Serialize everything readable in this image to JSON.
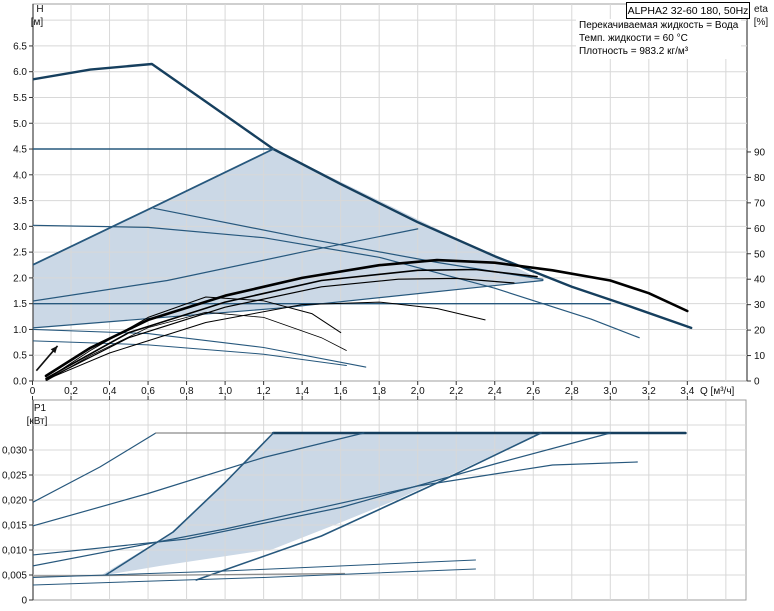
{
  "header": {
    "title": "ALPHA2 32-60 180, 50Hz",
    "info_lines": [
      "Перекачиваемая жидкость = Вода",
      "Темп. жидкости = 60 °C",
      "Плотность = 983.2 кг/м³"
    ]
  },
  "colors": {
    "curve_blue": "#27587d",
    "curve_dark": "#163f5e",
    "curve_black": "#000000",
    "curve_gray": "#8a8a8a",
    "region_fill": "#cbd8e6",
    "grid": "#d8d8d8",
    "frame": "#9f9f9f",
    "axis": "#444444"
  },
  "chart_data": [
    {
      "type": "line",
      "name": "head-curves",
      "xlabel": "Q [м³/ч]",
      "ylabel": [
        "H",
        "[м]"
      ],
      "y2label": [
        "eta",
        "[%]"
      ],
      "xlim": [
        0,
        3.71
      ],
      "ylim": [
        0,
        7.31
      ],
      "y2lim": [
        0,
        148
      ],
      "x_ticks": {
        "values": [
          0,
          0.2,
          0.4,
          0.6,
          0.8,
          1.0,
          1.2,
          1.4,
          1.6,
          1.8,
          2.0,
          2.2,
          2.4,
          2.6,
          2.8,
          3.0,
          3.2,
          3.4
        ],
        "labels": [
          "0",
          "0,2",
          "0,4",
          "0,6",
          "0,8",
          "1,0",
          "1,2",
          "1,4",
          "1,6",
          "1,8",
          "2,0",
          "2,2",
          "2,4",
          "2,6",
          "2,8",
          "3,0",
          "3,2",
          "3,4"
        ]
      },
      "y_ticks": {
        "values": [
          0,
          0.5,
          1.0,
          1.5,
          2.0,
          2.5,
          3.0,
          3.5,
          4.0,
          4.5,
          5.0,
          5.5,
          6.0,
          6.5
        ],
        "labels": [
          "0.0",
          "0.5",
          "1.0",
          "1.5",
          "2.0",
          "2.5",
          "3.0",
          "3.5",
          "4.0",
          "4.5",
          "5.0",
          "5.5",
          "6.0",
          "6.5"
        ]
      },
      "y2_ticks": {
        "values": [
          0,
          10,
          20,
          30,
          40,
          50,
          60,
          70,
          80,
          90
        ],
        "labels": [
          "0",
          "10",
          "20",
          "30",
          "40",
          "50",
          "60",
          "70",
          "80",
          "90"
        ]
      },
      "region": [
        [
          0,
          2.25
        ],
        [
          1.25,
          4.5
        ],
        [
          2.65,
          1.95
        ],
        [
          1.3,
          1.42
        ],
        [
          0,
          1.03
        ]
      ],
      "annotations": [
        {
          "type": "arrow",
          "from": [
            0.02,
            0.2
          ],
          "to": [
            0.13,
            0.68
          ]
        }
      ],
      "series": [
        {
          "name": "max-speed-curve",
          "axis": "y",
          "color": "dark",
          "width": 2.4,
          "points": [
            [
              0,
              5.85
            ],
            [
              0.3,
              6.04
            ],
            [
              0.62,
              6.15
            ],
            [
              0.9,
              5.42
            ],
            [
              1.25,
              4.5
            ],
            [
              1.6,
              3.82
            ],
            [
              2.0,
              3.08
            ],
            [
              2.4,
              2.42
            ],
            [
              2.8,
              1.83
            ],
            [
              3.1,
              1.45
            ],
            [
              3.42,
              1.03
            ]
          ]
        },
        {
          "name": "constant-pressure-4.5",
          "axis": "y",
          "color": "blue",
          "width": 1.6,
          "points": [
            [
              0,
              4.5
            ],
            [
              1.25,
              4.5
            ]
          ]
        },
        {
          "name": "autoadapt-upper-edge",
          "axis": "y",
          "color": "blue",
          "width": 1.8,
          "points": [
            [
              0,
              2.25
            ],
            [
              0.63,
              3.38
            ],
            [
              1.25,
              4.5
            ]
          ]
        },
        {
          "name": "speed-ii-curve",
          "axis": "y",
          "color": "blue",
          "width": 1.2,
          "points": [
            [
              0,
              3.02
            ],
            [
              0.6,
              2.98
            ],
            [
              1.2,
              2.78
            ],
            [
              1.8,
              2.4
            ],
            [
              2.4,
              1.8
            ],
            [
              2.9,
              1.2
            ],
            [
              3.15,
              0.84
            ]
          ]
        },
        {
          "name": "prop-pressure-mid-rising",
          "axis": "y",
          "color": "blue",
          "width": 1.2,
          "points": [
            [
              0,
              1.55
            ],
            [
              0.7,
              1.95
            ],
            [
              1.4,
              2.5
            ],
            [
              2.0,
              2.95
            ]
          ]
        },
        {
          "name": "prop-pressure-mid-desc",
          "axis": "y",
          "color": "blue",
          "width": 1.2,
          "points": [
            [
              0.63,
              3.35
            ],
            [
              1.4,
              2.78
            ],
            [
              2.1,
              2.3
            ],
            [
              2.65,
              1.97
            ]
          ]
        },
        {
          "name": "constant-pressure-1.5",
          "axis": "y",
          "color": "blue",
          "width": 1.4,
          "points": [
            [
              0,
              1.5
            ],
            [
              3.0,
              1.5
            ]
          ]
        },
        {
          "name": "prop-pressure-low-rising",
          "axis": "y",
          "color": "blue",
          "width": 1.2,
          "points": [
            [
              0,
              1.03
            ],
            [
              1.3,
              1.42
            ],
            [
              2.65,
              1.95
            ]
          ]
        },
        {
          "name": "speed-i-curve",
          "axis": "y",
          "color": "blue",
          "width": 1.1,
          "points": [
            [
              0,
              1.0
            ],
            [
              0.6,
              0.92
            ],
            [
              1.2,
              0.65
            ],
            [
              1.73,
              0.27
            ]
          ]
        },
        {
          "name": "min-curve",
          "axis": "y",
          "color": "blue",
          "width": 1.0,
          "points": [
            [
              0,
              0.78
            ],
            [
              0.6,
              0.7
            ],
            [
              1.2,
              0.52
            ],
            [
              1.63,
              0.3
            ]
          ]
        },
        {
          "name": "eta-max",
          "axis": "y2",
          "color": "black",
          "width": 2.6,
          "points": [
            [
              0.07,
              2
            ],
            [
              0.3,
              13
            ],
            [
              0.6,
              24
            ],
            [
              1.0,
              33.5
            ],
            [
              1.4,
              40.5
            ],
            [
              1.8,
              45.5
            ],
            [
              2.1,
              47.5
            ],
            [
              2.4,
              46.5
            ],
            [
              2.7,
              43.5
            ],
            [
              3.0,
              39.5
            ],
            [
              3.2,
              34.5
            ],
            [
              3.4,
              27.5
            ]
          ]
        },
        {
          "name": "eta-autoadapt-1",
          "axis": "y2",
          "color": "black",
          "width": 1.6,
          "points": [
            [
              0.07,
              1
            ],
            [
              0.5,
              19
            ],
            [
              1.0,
              31
            ],
            [
              1.5,
              39.5
            ],
            [
              2.0,
              43.5
            ],
            [
              2.3,
              43.8
            ],
            [
              2.62,
              41
            ]
          ]
        },
        {
          "name": "eta-autoadapt-2",
          "axis": "y2",
          "color": "black",
          "width": 1.2,
          "points": [
            [
              0.07,
              0.5
            ],
            [
              0.5,
              17
            ],
            [
              1.0,
              29
            ],
            [
              1.5,
              37
            ],
            [
              1.9,
              40
            ],
            [
              2.2,
              40.3
            ],
            [
              2.5,
              38.5
            ]
          ]
        },
        {
          "name": "eta-speed-ii",
          "axis": "y2",
          "color": "black",
          "width": 1.0,
          "points": [
            [
              0.07,
              0.5
            ],
            [
              0.4,
              11
            ],
            [
              0.9,
              23
            ],
            [
              1.4,
              30
            ],
            [
              1.8,
              31
            ],
            [
              2.1,
              28.5
            ],
            [
              2.35,
              24
            ]
          ]
        },
        {
          "name": "eta-speed-i",
          "axis": "y2",
          "color": "black",
          "width": 1.0,
          "points": [
            [
              0.07,
              0.5
            ],
            [
              0.3,
              12
            ],
            [
              0.6,
              25
            ],
            [
              0.9,
              33
            ],
            [
              1.2,
              31.5
            ],
            [
              1.45,
              26.5
            ],
            [
              1.6,
              19
            ]
          ]
        },
        {
          "name": "eta-min",
          "axis": "y2",
          "color": "black",
          "width": 0.8,
          "points": [
            [
              0.07,
              0
            ],
            [
              0.3,
              10
            ],
            [
              0.6,
              21
            ],
            [
              0.9,
              27
            ],
            [
              1.2,
              25
            ],
            [
              1.5,
              17
            ],
            [
              1.63,
              12
            ]
          ]
        }
      ]
    },
    {
      "type": "line",
      "name": "power-curves",
      "xlabel": "",
      "ylabel": [
        "P1",
        "[кВт]"
      ],
      "xlim": [
        0,
        3.71
      ],
      "ylim": [
        0,
        0.04
      ],
      "x_ticks": {
        "values": [
          0,
          0.2,
          0.4,
          0.6,
          0.8,
          1.0,
          1.2,
          1.4,
          1.6,
          1.8,
          2.0,
          2.2,
          2.4,
          2.6,
          2.8,
          3.0,
          3.2,
          3.4
        ],
        "labels": []
      },
      "y_ticks": {
        "values": [
          0,
          0.005,
          0.01,
          0.015,
          0.02,
          0.025,
          0.03
        ],
        "labels": [
          "0",
          "0,005",
          "0,010",
          "0,015",
          "0,020",
          "0,025",
          "0,030"
        ]
      },
      "region": [
        [
          0.35,
          0.0048
        ],
        [
          0.73,
          0.0136
        ],
        [
          1.0,
          0.0235
        ],
        [
          1.25,
          0.0334
        ],
        [
          2.64,
          0.0334
        ],
        [
          1.9,
          0.0202
        ],
        [
          1.6,
          0.0155
        ],
        [
          1.25,
          0.0102
        ],
        [
          0.66,
          0.0068
        ]
      ],
      "annotations": [],
      "series": [
        {
          "name": "p1-speed-iii-rise",
          "axis": "y",
          "color": "blue",
          "width": 1.2,
          "points": [
            [
              0,
              0.0195
            ],
            [
              0.35,
              0.0266
            ],
            [
              0.64,
              0.0334
            ]
          ]
        },
        {
          "name": "p1-max-plateau-gray",
          "axis": "y",
          "color": "gray",
          "width": 1.2,
          "points": [
            [
              0.64,
              0.0334
            ],
            [
              1.25,
              0.0334
            ]
          ]
        },
        {
          "name": "p1-max-plateau",
          "axis": "y",
          "color": "dark",
          "width": 2.6,
          "points": [
            [
              1.25,
              0.0334
            ],
            [
              3.39,
              0.0334
            ]
          ]
        },
        {
          "name": "p1-speed-ii-rise",
          "axis": "y",
          "color": "blue",
          "width": 1.2,
          "points": [
            [
              0,
              0.0148
            ],
            [
              0.6,
              0.0213
            ],
            [
              1.2,
              0.0285
            ],
            [
              1.72,
              0.0334
            ]
          ]
        },
        {
          "name": "p1-autoadapt-left-edge",
          "axis": "y",
          "color": "blue",
          "width": 1.6,
          "points": [
            [
              0.38,
              0.005
            ],
            [
              0.73,
              0.0136
            ],
            [
              1.0,
              0.0235
            ],
            [
              1.25,
              0.0334
            ]
          ]
        },
        {
          "name": "p1-autoadapt-right-edge",
          "axis": "y",
          "color": "blue",
          "width": 1.6,
          "points": [
            [
              0.85,
              0.004
            ],
            [
              1.5,
              0.0128
            ],
            [
              2.1,
              0.0234
            ],
            [
              2.64,
              0.0334
            ]
          ]
        },
        {
          "name": "p1-rising-to-max",
          "axis": "y",
          "color": "blue",
          "width": 1.2,
          "points": [
            [
              0,
              0.009
            ],
            [
              0.8,
              0.0122
            ],
            [
              1.6,
              0.0185
            ],
            [
              2.4,
              0.0272
            ],
            [
              3.0,
              0.0334
            ]
          ]
        },
        {
          "name": "p1-arc",
          "axis": "y",
          "color": "blue",
          "width": 1.2,
          "points": [
            [
              0,
              0.0068
            ],
            [
              1.0,
              0.0142
            ],
            [
              2.0,
              0.0228
            ],
            [
              2.7,
              0.027
            ],
            [
              3.14,
              0.0276
            ]
          ]
        },
        {
          "name": "p1-night-flat",
          "axis": "y",
          "color": "gray",
          "width": 1.2,
          "points": [
            [
              0,
              0.0048
            ],
            [
              0.8,
              0.005
            ],
            [
              1.62,
              0.0053
            ]
          ]
        },
        {
          "name": "p1-low-1",
          "axis": "y",
          "color": "blue",
          "width": 1.0,
          "points": [
            [
              0,
              0.0045
            ],
            [
              1.0,
              0.0058
            ],
            [
              2.3,
              0.008
            ]
          ]
        },
        {
          "name": "p1-low-2",
          "axis": "y",
          "color": "blue",
          "width": 1.0,
          "points": [
            [
              0,
              0.003
            ],
            [
              1.2,
              0.0045
            ],
            [
              2.3,
              0.0062
            ]
          ]
        }
      ]
    }
  ]
}
